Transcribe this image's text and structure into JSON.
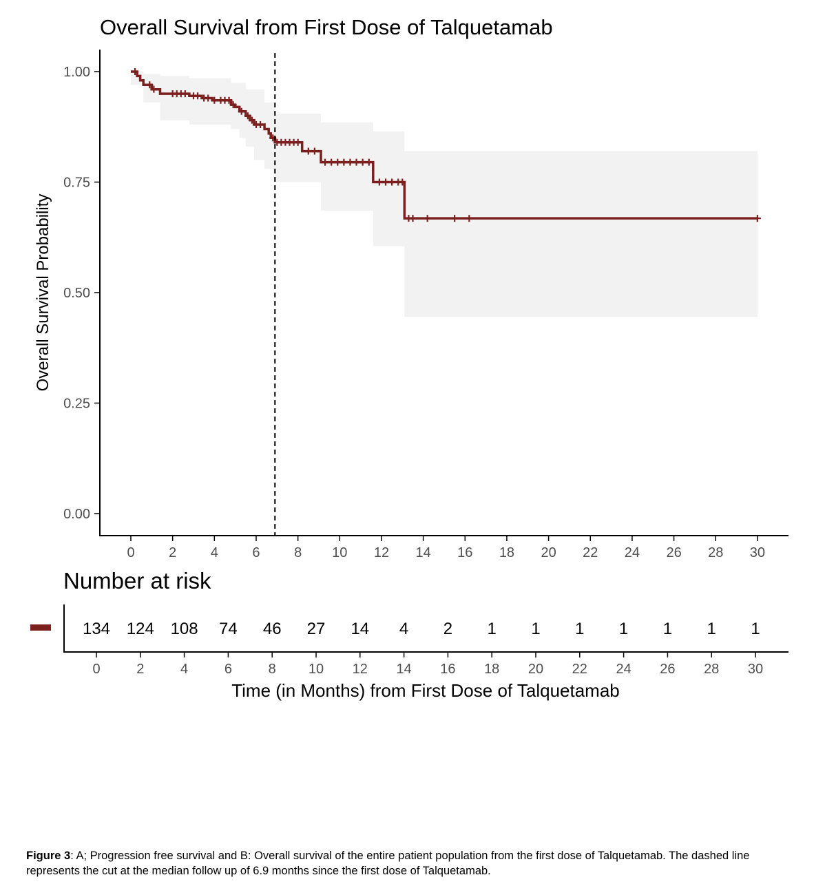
{
  "chart_data": {
    "type": "line",
    "title": "Overall Survival from First Dose of Talquetamab",
    "xlabel": "Time (in Months) from First Dose of Talquetamab",
    "ylabel": "Overall Survival Probability",
    "xlim": [
      0,
      30
    ],
    "ylim": [
      0,
      1
    ],
    "x_ticks": [
      0,
      2,
      4,
      6,
      8,
      10,
      12,
      14,
      16,
      18,
      20,
      22,
      24,
      26,
      28,
      30
    ],
    "y_ticks": [
      "0.00",
      "0.25",
      "0.50",
      "0.75",
      "1.00"
    ],
    "grid": false,
    "legend": "none",
    "colors": {
      "curve": "#7b1f1f",
      "ci_band": "#f2f2f2",
      "median_line": "#000000"
    },
    "median_followup_x": 6.9,
    "series": [
      {
        "steps": [
          [
            0,
            1.0
          ],
          [
            0.3,
            0.99
          ],
          [
            0.45,
            0.98
          ],
          [
            0.6,
            0.97
          ],
          [
            1.0,
            0.96
          ],
          [
            1.4,
            0.95
          ],
          [
            2.8,
            0.945
          ],
          [
            3.4,
            0.94
          ],
          [
            3.9,
            0.935
          ],
          [
            4.8,
            0.925
          ],
          [
            5.0,
            0.92
          ],
          [
            5.2,
            0.91
          ],
          [
            5.5,
            0.9
          ],
          [
            5.7,
            0.89
          ],
          [
            5.9,
            0.88
          ],
          [
            6.4,
            0.87
          ],
          [
            6.6,
            0.86
          ],
          [
            6.7,
            0.85
          ],
          [
            6.9,
            0.84
          ],
          [
            8.2,
            0.82
          ],
          [
            9.1,
            0.795
          ],
          [
            11.6,
            0.75
          ],
          [
            13.1,
            0.668
          ],
          [
            30.0,
            0.668
          ]
        ],
        "ci_lower": [
          [
            0,
            0.97
          ],
          [
            0.6,
            0.93
          ],
          [
            1.4,
            0.89
          ],
          [
            2.8,
            0.88
          ],
          [
            4.8,
            0.87
          ],
          [
            5.2,
            0.85
          ],
          [
            5.5,
            0.83
          ],
          [
            5.9,
            0.8
          ],
          [
            6.4,
            0.78
          ],
          [
            6.9,
            0.75
          ],
          [
            9.1,
            0.685
          ],
          [
            11.6,
            0.605
          ],
          [
            13.1,
            0.445
          ],
          [
            30.0,
            0.445
          ]
        ],
        "ci_upper": [
          [
            0,
            1.0
          ],
          [
            0.6,
            0.995
          ],
          [
            1.4,
            0.99
          ],
          [
            2.8,
            0.985
          ],
          [
            4.8,
            0.975
          ],
          [
            5.5,
            0.96
          ],
          [
            6.4,
            0.93
          ],
          [
            6.9,
            0.905
          ],
          [
            9.1,
            0.885
          ],
          [
            11.6,
            0.865
          ],
          [
            13.1,
            0.82
          ],
          [
            30.0,
            0.82
          ]
        ],
        "censored": [
          [
            0.2,
            1.0
          ],
          [
            0.9,
            0.97
          ],
          [
            1.1,
            0.96
          ],
          [
            2.0,
            0.95
          ],
          [
            2.2,
            0.95
          ],
          [
            2.4,
            0.95
          ],
          [
            2.6,
            0.95
          ],
          [
            3.0,
            0.945
          ],
          [
            3.2,
            0.945
          ],
          [
            3.5,
            0.94
          ],
          [
            3.7,
            0.94
          ],
          [
            4.0,
            0.935
          ],
          [
            4.3,
            0.935
          ],
          [
            4.5,
            0.935
          ],
          [
            4.7,
            0.935
          ],
          [
            4.9,
            0.925
          ],
          [
            5.3,
            0.91
          ],
          [
            5.6,
            0.9
          ],
          [
            5.8,
            0.89
          ],
          [
            6.0,
            0.88
          ],
          [
            6.2,
            0.88
          ],
          [
            6.8,
            0.85
          ],
          [
            7.0,
            0.84
          ],
          [
            7.2,
            0.84
          ],
          [
            7.4,
            0.84
          ],
          [
            7.6,
            0.84
          ],
          [
            7.8,
            0.84
          ],
          [
            8.0,
            0.84
          ],
          [
            8.5,
            0.82
          ],
          [
            8.8,
            0.82
          ],
          [
            9.3,
            0.795
          ],
          [
            9.6,
            0.795
          ],
          [
            9.9,
            0.795
          ],
          [
            10.2,
            0.795
          ],
          [
            10.5,
            0.795
          ],
          [
            10.8,
            0.795
          ],
          [
            11.1,
            0.795
          ],
          [
            11.4,
            0.795
          ],
          [
            11.9,
            0.75
          ],
          [
            12.2,
            0.75
          ],
          [
            12.5,
            0.75
          ],
          [
            12.8,
            0.75
          ],
          [
            13.0,
            0.75
          ],
          [
            13.3,
            0.668
          ],
          [
            13.5,
            0.668
          ],
          [
            14.2,
            0.668
          ],
          [
            15.5,
            0.668
          ],
          [
            16.2,
            0.668
          ],
          [
            30.0,
            0.668
          ]
        ]
      }
    ],
    "risk_table": {
      "title": "Number at risk",
      "times": [
        0,
        2,
        4,
        6,
        8,
        10,
        12,
        14,
        16,
        18,
        20,
        22,
        24,
        26,
        28,
        30
      ],
      "counts": [
        134,
        124,
        108,
        74,
        46,
        27,
        14,
        4,
        2,
        1,
        1,
        1,
        1,
        1,
        1,
        1
      ]
    }
  },
  "caption": {
    "label": "Figure 3",
    "text": ": A; Progression free survival and B: Overall survival of the entire patient population from the first dose of Talquetamab. The dashed line represents the cut at the median follow up of 6.9 months since the first dose of Talquetamab."
  }
}
